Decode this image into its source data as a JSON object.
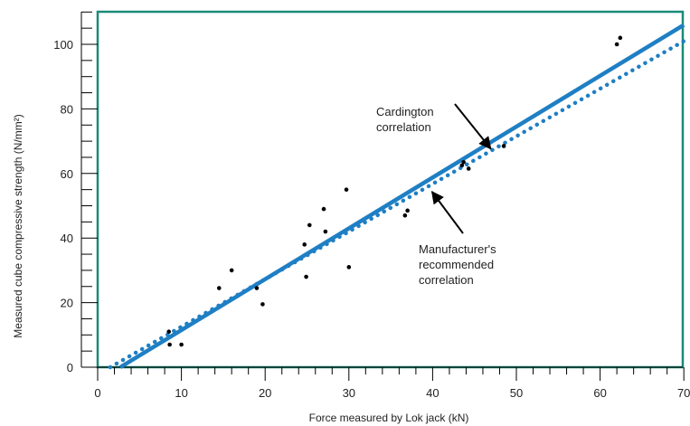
{
  "chart_data": {
    "type": "scatter",
    "xlabel": "Force measured by Lok jack (kN)",
    "ylabel": "Measured cube compressive strength (N/mm²)",
    "xlim": [
      0,
      70
    ],
    "ylim": [
      0,
      110
    ],
    "x_ticks": [
      "0",
      "10",
      "20",
      "30",
      "40",
      "50",
      "60",
      "70"
    ],
    "y_ticks": [
      "0",
      "20",
      "40",
      "60",
      "80",
      "100"
    ],
    "grid": false,
    "colors": {
      "frame": "#1a8a78",
      "line": "#1f7fc4",
      "points": "#000000"
    },
    "points": [
      {
        "x": 8.5,
        "y": 11
      },
      {
        "x": 8.6,
        "y": 7
      },
      {
        "x": 10,
        "y": 7
      },
      {
        "x": 14.5,
        "y": 24.5
      },
      {
        "x": 16,
        "y": 30
      },
      {
        "x": 19,
        "y": 24.5
      },
      {
        "x": 19.7,
        "y": 19.5
      },
      {
        "x": 24.7,
        "y": 38
      },
      {
        "x": 24.9,
        "y": 28
      },
      {
        "x": 25.3,
        "y": 44
      },
      {
        "x": 27,
        "y": 49
      },
      {
        "x": 27.2,
        "y": 42
      },
      {
        "x": 29.7,
        "y": 55
      },
      {
        "x": 30,
        "y": 31
      },
      {
        "x": 36.7,
        "y": 47
      },
      {
        "x": 37,
        "y": 48.5
      },
      {
        "x": 43.5,
        "y": 62.5
      },
      {
        "x": 43.7,
        "y": 63.5
      },
      {
        "x": 44.3,
        "y": 61.5
      },
      {
        "x": 48.5,
        "y": 68.5
      },
      {
        "x": 62,
        "y": 100
      },
      {
        "x": 62.4,
        "y": 102
      }
    ],
    "series": [
      {
        "name": "Cardington correlation",
        "style": "solid",
        "x": [
          2.7,
          70
        ],
        "y": [
          0,
          106
        ]
      },
      {
        "name": "Manufacturer's recommended correlation",
        "style": "dotted",
        "x": [
          1.5,
          70
        ],
        "y": [
          0,
          101
        ]
      }
    ],
    "annotations": [
      {
        "lines": [
          "Cardington",
          "correlation"
        ],
        "target": [
          46.5,
          66
        ]
      },
      {
        "lines": [
          "Manufacturer's",
          "recommended",
          "correlation"
        ],
        "target": [
          39.5,
          56
        ]
      }
    ]
  }
}
